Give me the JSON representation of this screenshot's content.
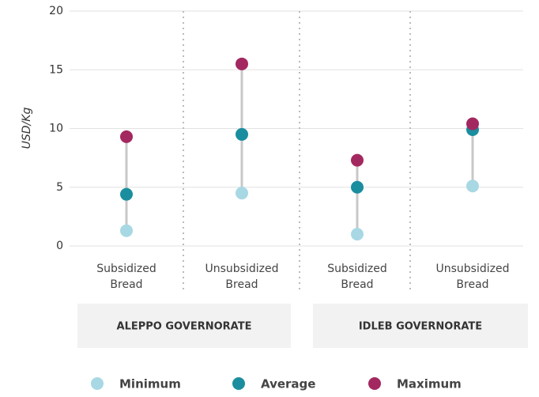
{
  "chart_data": {
    "type": "dot-range",
    "y_label": "USD/Kg",
    "categories": [
      "Subsidized Bread",
      "Unsubsidized Bread",
      "Subsidized Bread",
      "Unsubsidized Bread"
    ],
    "groups": [
      "ALEPPO GOVERNORATE",
      "IDLEB GOVERNORATE"
    ],
    "series": [
      {
        "name": "Minimum",
        "color": "#a8d8e4",
        "values": [
          1.3,
          4.5,
          1.0,
          5.1
        ]
      },
      {
        "name": "Average",
        "color": "#1a8e9f",
        "values": [
          4.4,
          9.5,
          5.0,
          9.9
        ]
      },
      {
        "name": "Maximum",
        "color": "#a3285f",
        "values": [
          9.3,
          15.5,
          7.3,
          10.4
        ]
      }
    ],
    "ylim": [
      0,
      20
    ],
    "yticks": [
      0,
      5,
      10,
      15,
      20
    ],
    "grid": true
  }
}
